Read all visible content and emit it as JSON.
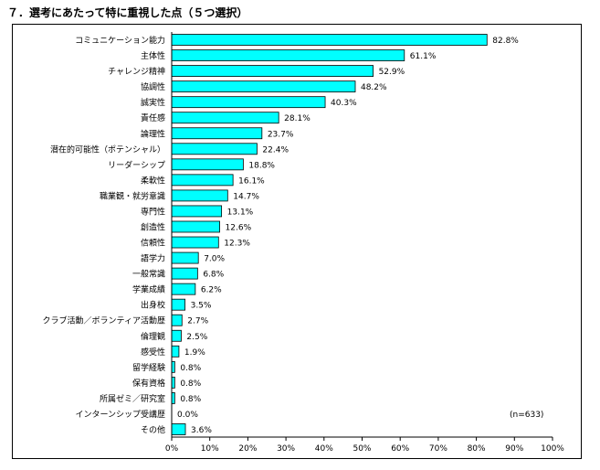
{
  "title": "７．選考にあたって特に重視した点（５つ選択）",
  "chart_data": {
    "type": "bar",
    "orientation": "horizontal",
    "categories": [
      "コミュニケーション能力",
      "主体性",
      "チャレンジ精神",
      "協調性",
      "誠実性",
      "責任感",
      "論理性",
      "潜在的可能性（ポテンシャル）",
      "リーダーシップ",
      "柔軟性",
      "職業観・就労意識",
      "専門性",
      "創造性",
      "信頼性",
      "語学力",
      "一般常識",
      "学業成績",
      "出身校",
      "クラブ活動／ボランティア活動歴",
      "倫理観",
      "感受性",
      "留学経験",
      "保有資格",
      "所属ゼミ／研究室",
      "インターンシップ受講歴",
      "その他"
    ],
    "values": [
      82.8,
      61.1,
      52.9,
      48.2,
      40.3,
      28.1,
      23.7,
      22.4,
      18.8,
      16.1,
      14.7,
      13.1,
      12.6,
      12.3,
      7.0,
      6.8,
      6.2,
      3.5,
      2.7,
      2.5,
      1.9,
      0.8,
      0.8,
      0.8,
      0.0,
      3.6
    ],
    "value_labels": [
      "82.8%",
      "61.1%",
      "52.9%",
      "48.2%",
      "40.3%",
      "28.1%",
      "23.7%",
      "22.4%",
      "18.8%",
      "16.1%",
      "14.7%",
      "13.1%",
      "12.6%",
      "12.3%",
      "7.0%",
      "6.8%",
      "6.2%",
      "3.5%",
      "2.7%",
      "2.5%",
      "1.9%",
      "0.8%",
      "0.8%",
      "0.8%",
      "0.0%",
      "3.6%"
    ],
    "xlim": [
      0,
      100
    ],
    "x_ticks": [
      "0%",
      "10%",
      "20%",
      "30%",
      "40%",
      "50%",
      "60%",
      "70%",
      "80%",
      "90%",
      "100%"
    ],
    "annotation": "(n=633)",
    "grid": false,
    "bar_color": "#00FFFF",
    "bar_edge_color": "#000000"
  }
}
